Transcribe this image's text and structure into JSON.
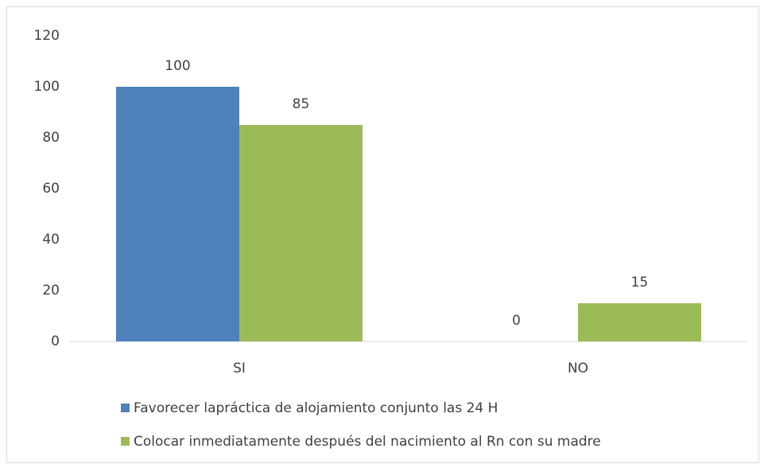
{
  "chart_data": {
    "type": "bar",
    "categories": [
      "SI",
      "NO"
    ],
    "series": [
      {
        "name": "Favorecer lapráctica de alojamiento conjunto las 24 H",
        "color": "#4f81bd",
        "values": [
          100,
          0
        ]
      },
      {
        "name": "Colocar inmediatamente después del nacimiento al Rn con su madre",
        "color": "#9bbb59",
        "values": [
          85,
          15
        ]
      }
    ],
    "ylim": [
      0,
      120
    ],
    "yticks": [
      0,
      20,
      40,
      60,
      80,
      100,
      120
    ],
    "grid": false,
    "legend": "bottom"
  }
}
